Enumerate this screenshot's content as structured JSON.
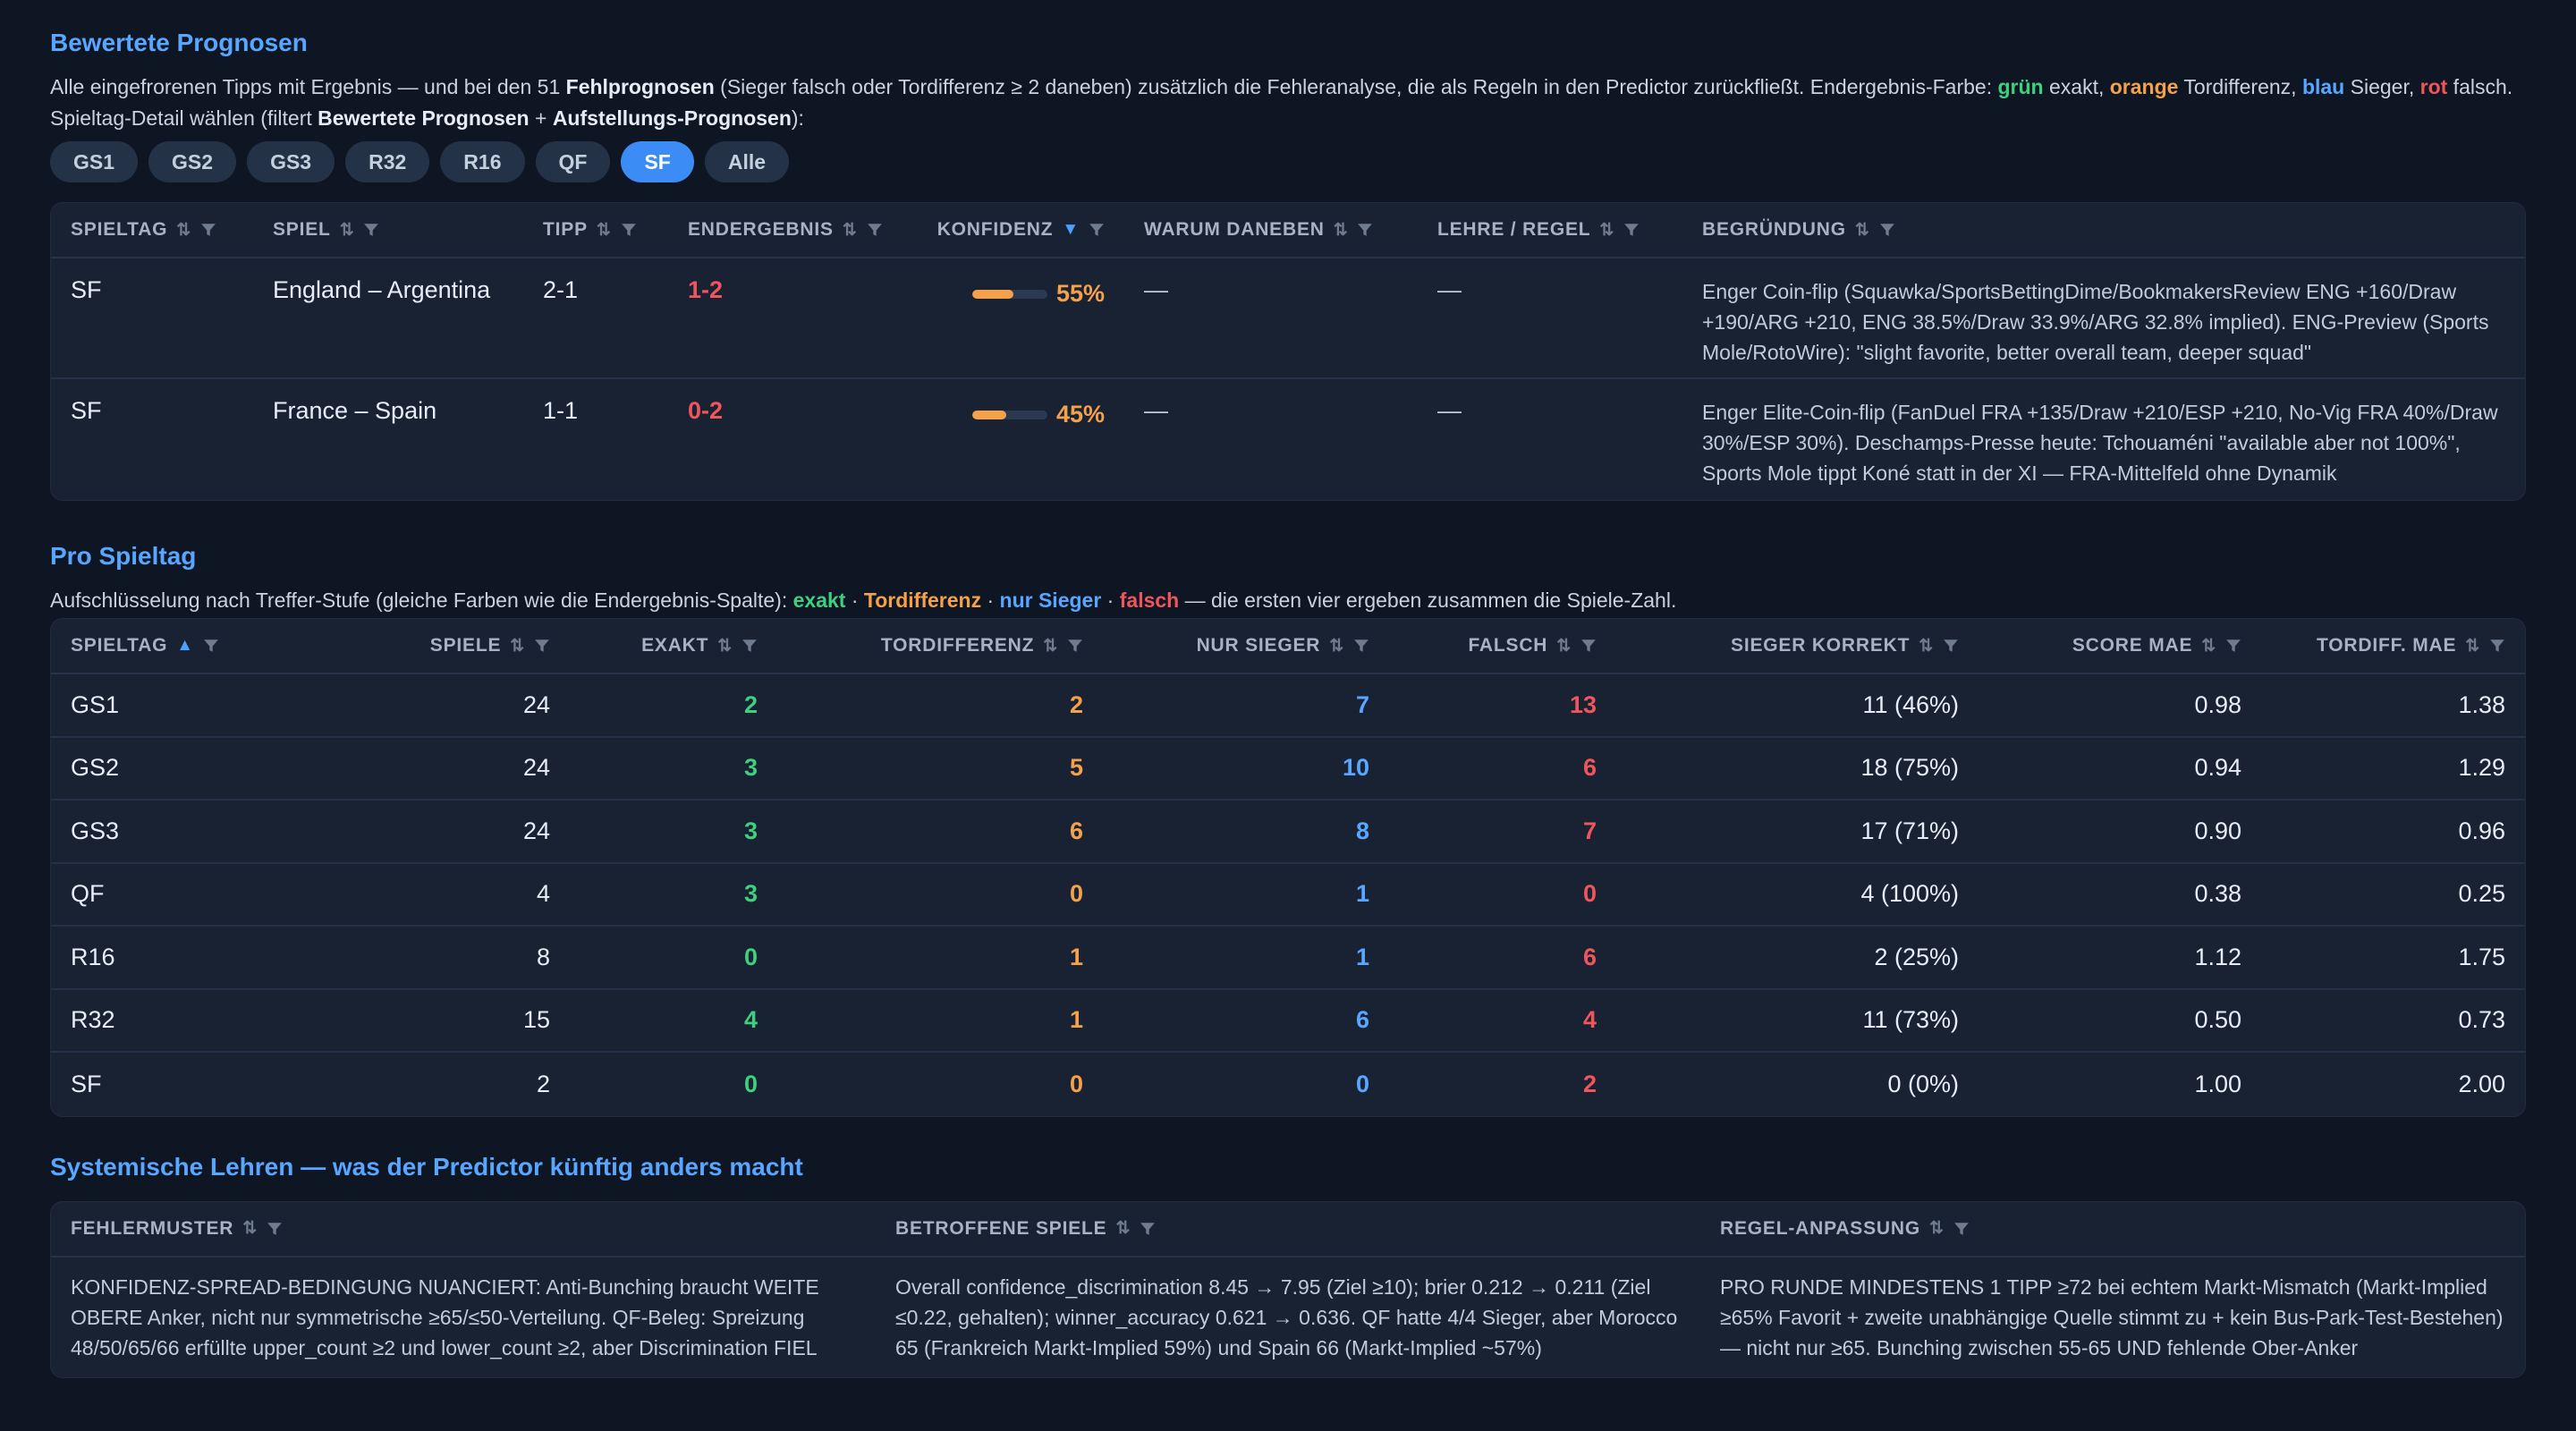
{
  "section1": {
    "title": "Bewertete Prognosen",
    "desc": {
      "p1": "Alle eingefrorenen Tipps mit Ergebnis — und bei den 51 ",
      "p1_bold": "Fehlprognosen",
      "p2": " (Sieger falsch oder Tordifferenz ≥ 2 daneben) zusätzlich die Fehleranalyse, die als Regeln in den Predictor zurückfließt. Endergebnis-Farbe: ",
      "green": "grün",
      "t_exakt": " exakt, ",
      "orange": "orange",
      "t_tordiff": " Tordifferenz, ",
      "blue": "blau",
      "t_sieger": " Sieger, ",
      "red": "rot",
      "t_falsch": " falsch."
    },
    "filter_line": {
      "p1": "Spieltag-Detail wählen (filtert ",
      "b1": "Bewertete Prognosen",
      "p2": " + ",
      "b2": "Aufstellungs-Prognosen",
      "p3": "):"
    },
    "chips": [
      "GS1",
      "GS2",
      "GS3",
      "R32",
      "R16",
      "QF",
      "SF",
      "Alle"
    ],
    "active_chip": "SF",
    "columns": [
      "SPIELTAG",
      "SPIEL",
      "TIPP",
      "ENDERGEBNIS",
      "KONFIDENZ",
      "WARUM DANEBEN",
      "LEHRE / REGEL",
      "BEGRÜNDUNG"
    ],
    "rows": [
      {
        "spieltag": "SF",
        "spiel": "England – Argentina",
        "tipp": "2-1",
        "endergebnis": "1-2",
        "konfidenz": "55%",
        "konfidenz_value": 0.55,
        "warum": "—",
        "lehre": "—",
        "begruendung": "Enger Coin-flip (Squawka/SportsBettingDime/BookmakersReview ENG +160/Draw +190/ARG +210, ENG 38.5%/Draw 33.9%/ARG 32.8% implied). ENG-Preview (Sports Mole/RotoWire): \"slight favorite, better overall team, deeper squad\""
      },
      {
        "spieltag": "SF",
        "spiel": "France – Spain",
        "tipp": "1-1",
        "endergebnis": "0-2",
        "konfidenz": "45%",
        "konfidenz_value": 0.45,
        "warum": "—",
        "lehre": "—",
        "begruendung": "Enger Elite-Coin-flip (FanDuel FRA +135/Draw +210/ESP +210, No-Vig FRA 40%/Draw 30%/ESP 30%). Deschamps-Presse heute: Tchouaméni \"available aber not 100%\", Sports Mole tippt Koné statt in der XI — FRA-Mittelfeld ohne Dynamik"
      }
    ]
  },
  "section2": {
    "title": "Pro Spieltag",
    "desc": {
      "p1": "Aufschlüsselung nach Treffer-Stufe (gleiche Farben wie die Endergebnis-Spalte): ",
      "exakt": "exakt",
      "sep": " · ",
      "tordiff": "Tordifferenz",
      "sieger": "nur Sieger",
      "falsch": "falsch",
      "p2": " — die ersten vier ergeben zusammen die Spiele-Zahl."
    },
    "columns": [
      "SPIELTAG",
      "SPIELE",
      "EXAKT",
      "TORDIFFERENZ",
      "NUR SIEGER",
      "FALSCH",
      "SIEGER KORREKT",
      "SCORE MAE",
      "TORDIFF. MAE"
    ],
    "rows": [
      {
        "spieltag": "GS1",
        "spiele": "24",
        "exakt": "2",
        "tordiff": "2",
        "sieger": "7",
        "falsch": "13",
        "korrekt": "11 (46%)",
        "score_mae": "0.98",
        "tordiff_mae": "1.38"
      },
      {
        "spieltag": "GS2",
        "spiele": "24",
        "exakt": "3",
        "tordiff": "5",
        "sieger": "10",
        "falsch": "6",
        "korrekt": "18 (75%)",
        "score_mae": "0.94",
        "tordiff_mae": "1.29"
      },
      {
        "spieltag": "GS3",
        "spiele": "24",
        "exakt": "3",
        "tordiff": "6",
        "sieger": "8",
        "falsch": "7",
        "korrekt": "17 (71%)",
        "score_mae": "0.90",
        "tordiff_mae": "0.96"
      },
      {
        "spieltag": "QF",
        "spiele": "4",
        "exakt": "3",
        "tordiff": "0",
        "sieger": "1",
        "falsch": "0",
        "korrekt": "4 (100%)",
        "score_mae": "0.38",
        "tordiff_mae": "0.25"
      },
      {
        "spieltag": "R16",
        "spiele": "8",
        "exakt": "0",
        "tordiff": "1",
        "sieger": "1",
        "falsch": "6",
        "korrekt": "2 (25%)",
        "score_mae": "1.12",
        "tordiff_mae": "1.75"
      },
      {
        "spieltag": "R32",
        "spiele": "15",
        "exakt": "4",
        "tordiff": "1",
        "sieger": "6",
        "falsch": "4",
        "korrekt": "11 (73%)",
        "score_mae": "0.50",
        "tordiff_mae": "0.73"
      },
      {
        "spieltag": "SF",
        "spiele": "2",
        "exakt": "0",
        "tordiff": "0",
        "sieger": "0",
        "falsch": "2",
        "korrekt": "0 (0%)",
        "score_mae": "1.00",
        "tordiff_mae": "2.00"
      }
    ]
  },
  "section3": {
    "title": "Systemische Lehren — was der Predictor künftig anders macht",
    "columns": [
      "FEHLERMUSTER",
      "BETROFFENE SPIELE",
      "REGEL-ANPASSUNG"
    ],
    "rows": [
      {
        "muster": "KONFIDENZ-SPREAD-BEDINGUNG NUANCIERT: Anti-Bunching braucht WEITE OBERE Anker, nicht nur symmetrische ≥65/≤50-Verteilung. QF-Beleg: Spreizung 48/50/65/66 erfüllte upper_count ≥2 und lower_count ≥2, aber Discrimination FIEL",
        "spiele": "Overall confidence_discrimination 8.45 → 7.95 (Ziel ≥10); brier 0.212 → 0.211 (Ziel ≤0.22, gehalten); winner_accuracy 0.621 → 0.636. QF hatte 4/4 Sieger, aber Morocco 65 (Frankreich Markt-Implied 59%) und Spain 66 (Markt-Implied ~57%)",
        "regel": "PRO RUNDE MINDESTENS 1 TIPP ≥72 bei echtem Markt-Mismatch (Markt-Implied ≥65% Favorit + zweite unabhängige Quelle stimmt zu + kein Bus-Park-Test-Bestehen) — nicht nur ≥65. Bunching zwischen 55-65 UND fehlende Ober-Anker"
      }
    ]
  },
  "colors": {
    "exakt": "#3fcf7f",
    "tordiff": "#f5a04a",
    "sieger": "#58a6ff",
    "falsch": "#f0545c",
    "accent": "#58a6ff"
  },
  "icons": {
    "sort": "sort-icon",
    "filter": "filter-icon"
  }
}
